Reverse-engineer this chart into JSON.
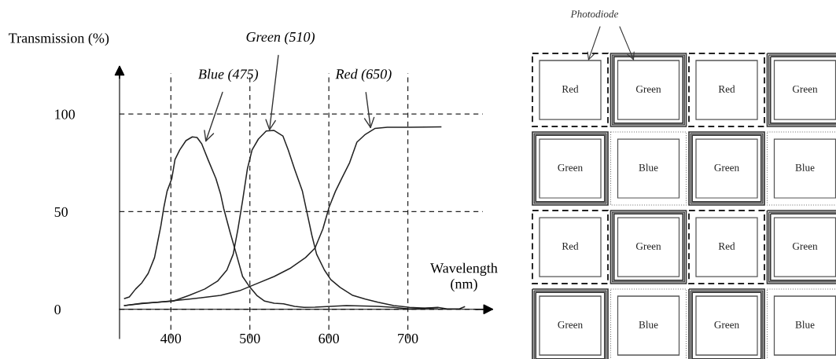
{
  "chart_data": [
    {
      "type": "line",
      "ylabel": "Transmission (%)",
      "xlabel": "Wavelength\n(nm)",
      "xlim": [
        335,
        795
      ],
      "ylim": [
        -15,
        121
      ],
      "xticks": [
        400,
        500,
        600,
        700
      ],
      "yticks": [
        0,
        50,
        100
      ],
      "grid": true,
      "line_style": "solid",
      "marker": "none",
      "series": [
        {
          "color": "#222222",
          "x": [
            341.4,
            347.4,
            355.4,
            363.3,
            371.3,
            379.3,
            383.3,
            387.3,
            391.2,
            395.2,
            401.2,
            405.2,
            411.2,
            419.1,
            427.1,
            433.1,
            439,
            447,
            457,
            463,
            466.9,
            474.9,
            482.9,
            490.8,
            498.8,
            508.8,
            518.7,
            530.7,
            542.6,
            556.6,
            568.5,
            582.5,
            622.3,
            662.2,
            682.1,
            702,
            737.8
          ],
          "values": [
            5.5,
            6.3,
            10.4,
            13.6,
            18.4,
            26.5,
            34.6,
            42.7,
            52.4,
            60.5,
            67,
            76.7,
            81.6,
            86.4,
            88.3,
            88,
            84.8,
            76.7,
            67,
            58.9,
            51.6,
            39.5,
            28.2,
            16.8,
            12,
            7.1,
            4.2,
            3.1,
            2.8,
            1.5,
            1,
            1.1,
            1.9,
            1.5,
            1,
            0.2,
            0.8
          ]
        },
        {
          "color": "#222222",
          "x": [
            341.4,
            363.3,
            383.3,
            403.2,
            423.1,
            443,
            459,
            470.9,
            478.9,
            484.9,
            490.8,
            496.8,
            502.8,
            510.8,
            520.7,
            530.7,
            541.8,
            548.6,
            556.6,
            566.5,
            572.5,
            578.5,
            584.5,
            594.4,
            602.4,
            614.3,
            630.3,
            646.2,
            662.2,
            682.1,
            702,
            721.9,
            737.8,
            749.8,
            765.7,
            771.7
          ],
          "values": [
            1.9,
            3.1,
            3.6,
            4.2,
            7.1,
            10.4,
            14.4,
            20.1,
            28.2,
            41.1,
            55.7,
            71.8,
            81.6,
            87.2,
            91.3,
            91.6,
            88.8,
            81.6,
            71.8,
            60.5,
            49.2,
            37.9,
            28.2,
            20.1,
            15.2,
            11.2,
            7.1,
            5.2,
            3.6,
            1.9,
            1,
            0.6,
            1,
            0.2,
            0.3,
            1.3
          ]
        },
        {
          "color": "#222222",
          "x": [
            341.4,
            363.3,
            391.2,
            423.1,
            462.9,
            486.9,
            506.8,
            530.7,
            550.6,
            570.5,
            582.5,
            592.4,
            600.4,
            608.4,
            616.3,
            626.3,
            635.5,
            646.2,
            658.2,
            674.1,
            702,
            741.8
          ],
          "values": [
            1.9,
            2.9,
            3.9,
            5.2,
            7.1,
            9.5,
            12.8,
            16.8,
            20.9,
            26.5,
            31.4,
            41.1,
            52.4,
            60.5,
            67,
            75.1,
            85.6,
            89.6,
            92.6,
            93.2,
            93.2,
            93.4
          ]
        }
      ],
      "annotations": [
        {
          "text": "Green (510)",
          "x": 524.7,
          "y": 91.4
        },
        {
          "text": "Blue (475)",
          "x": 443.8,
          "y": 85.6
        },
        {
          "text": "Red (650)",
          "x": 653,
          "y": 92.5
        }
      ]
    },
    {
      "type": "other",
      "title": "Photodiode",
      "annotations": [
        "Red",
        "Green",
        "Red",
        "Green",
        "Green",
        "Blue",
        "Green",
        "Blue",
        "Red",
        "Green",
        "Red",
        "Green",
        "Green",
        "Blue",
        "Green",
        "Blue"
      ]
    }
  ]
}
